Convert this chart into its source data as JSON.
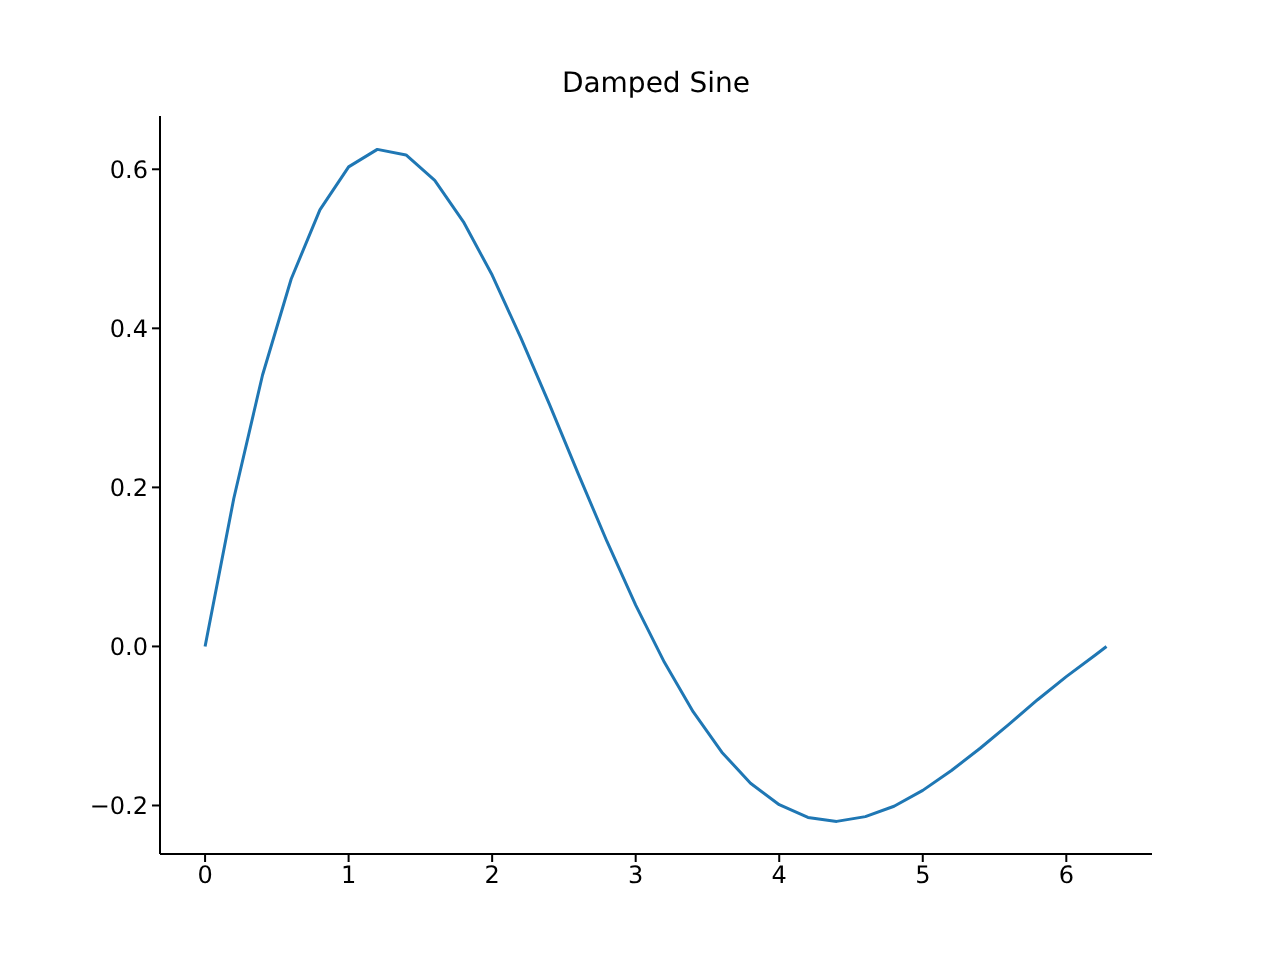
{
  "chart_data": {
    "type": "line",
    "title": "Damped Sine",
    "x": [
      0,
      0.2,
      0.4,
      0.6,
      0.8,
      1.0,
      1.2,
      1.4,
      1.6,
      1.8,
      2.0,
      2.2,
      2.4,
      2.6,
      2.8,
      3.0,
      3.2,
      3.4,
      3.6,
      3.8,
      4.0,
      4.2,
      4.4,
      4.6,
      4.8,
      5.0,
      5.2,
      5.4,
      5.6,
      5.8,
      6.0,
      6.2,
      6.28
    ],
    "values": [
      0,
      0.186,
      0.341,
      0.462,
      0.549,
      0.603,
      0.625,
      0.618,
      0.586,
      0.534,
      0.467,
      0.388,
      0.304,
      0.217,
      0.132,
      0.052,
      -0.02,
      -0.082,
      -0.133,
      -0.172,
      -0.199,
      -0.215,
      -0.22,
      -0.214,
      -0.201,
      -0.181,
      -0.156,
      -0.128,
      -0.098,
      -0.067,
      -0.038,
      -0.011,
      0
    ],
    "color": "#1f77b4",
    "xlim": [
      -0.314,
      6.597
    ],
    "xticks": [
      0,
      1,
      2,
      3,
      4,
      5,
      6
    ],
    "ylim": [
      -0.261,
      0.667
    ],
    "yticks": [
      {
        "value": -0.2,
        "label": "−0.2"
      },
      {
        "value": 0,
        "label": "0.0"
      },
      {
        "value": 0.2,
        "label": "0.2"
      },
      {
        "value": 0.4,
        "label": "0.4"
      },
      {
        "value": 0.6,
        "label": "0.6"
      }
    ]
  }
}
